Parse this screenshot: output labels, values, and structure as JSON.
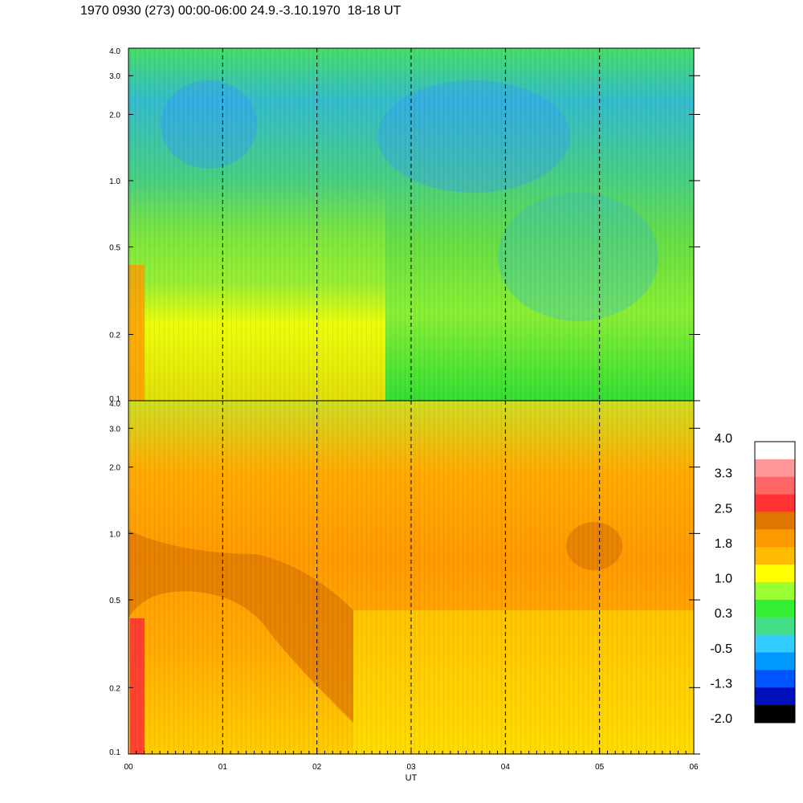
{
  "title": "1970 0930 (273) 00:00-06:00 24.9.-3.10.1970  18-18 UT",
  "chart_data": [
    {
      "type": "heatmap",
      "panel": "top",
      "x_ticks": [
        "00",
        "01",
        "02",
        "03",
        "04",
        "05",
        "06"
      ],
      "y_tick_values": [
        0.1,
        0.2,
        0.5,
        1.0,
        2.0,
        3.0,
        4.0
      ],
      "y_tick_labels": [
        "0.1",
        "0.2",
        "0.5",
        "1.0",
        "2.0",
        "3.0",
        "4.0"
      ],
      "ylim": [
        0.1,
        4.0
      ],
      "y_scale": "log",
      "xlim": [
        0,
        6
      ],
      "hour_gridlines": [
        1,
        2,
        3,
        4,
        5
      ],
      "grid": "dashed vertical lines at each hour"
    },
    {
      "type": "heatmap",
      "panel": "bottom",
      "x_ticks": [
        "00",
        "01",
        "02",
        "03",
        "04",
        "05",
        "06"
      ],
      "xlabel": "UT",
      "y_tick_values": [
        0.1,
        0.2,
        0.5,
        1.0,
        2.0,
        3.0,
        4.0
      ],
      "y_tick_labels": [
        "0.1",
        "0.2",
        "0.5",
        "1.0",
        "2.0",
        "3.0",
        "4.0"
      ],
      "ylim": [
        0.1,
        4.0
      ],
      "y_scale": "log",
      "xlim": [
        0,
        6
      ],
      "hour_gridlines": [
        1,
        2,
        3,
        4,
        5
      ],
      "grid": "dashed vertical lines at each hour"
    }
  ],
  "colorbar": {
    "labels": [
      "4.0",
      "3.3",
      "2.5",
      "1.8",
      "1.0",
      "0.3",
      "-0.5",
      "-1.3",
      "-2.0"
    ],
    "colors": [
      "#ffffff",
      "#ff9999",
      "#ff6666",
      "#ff3333",
      "#dd7700",
      "#ff9900",
      "#ffbb00",
      "#ffff00",
      "#99ff33",
      "#33ee33",
      "#44dd88",
      "#33ccff",
      "#0099ff",
      "#0055ff",
      "#0011bb",
      "#000000"
    ]
  }
}
